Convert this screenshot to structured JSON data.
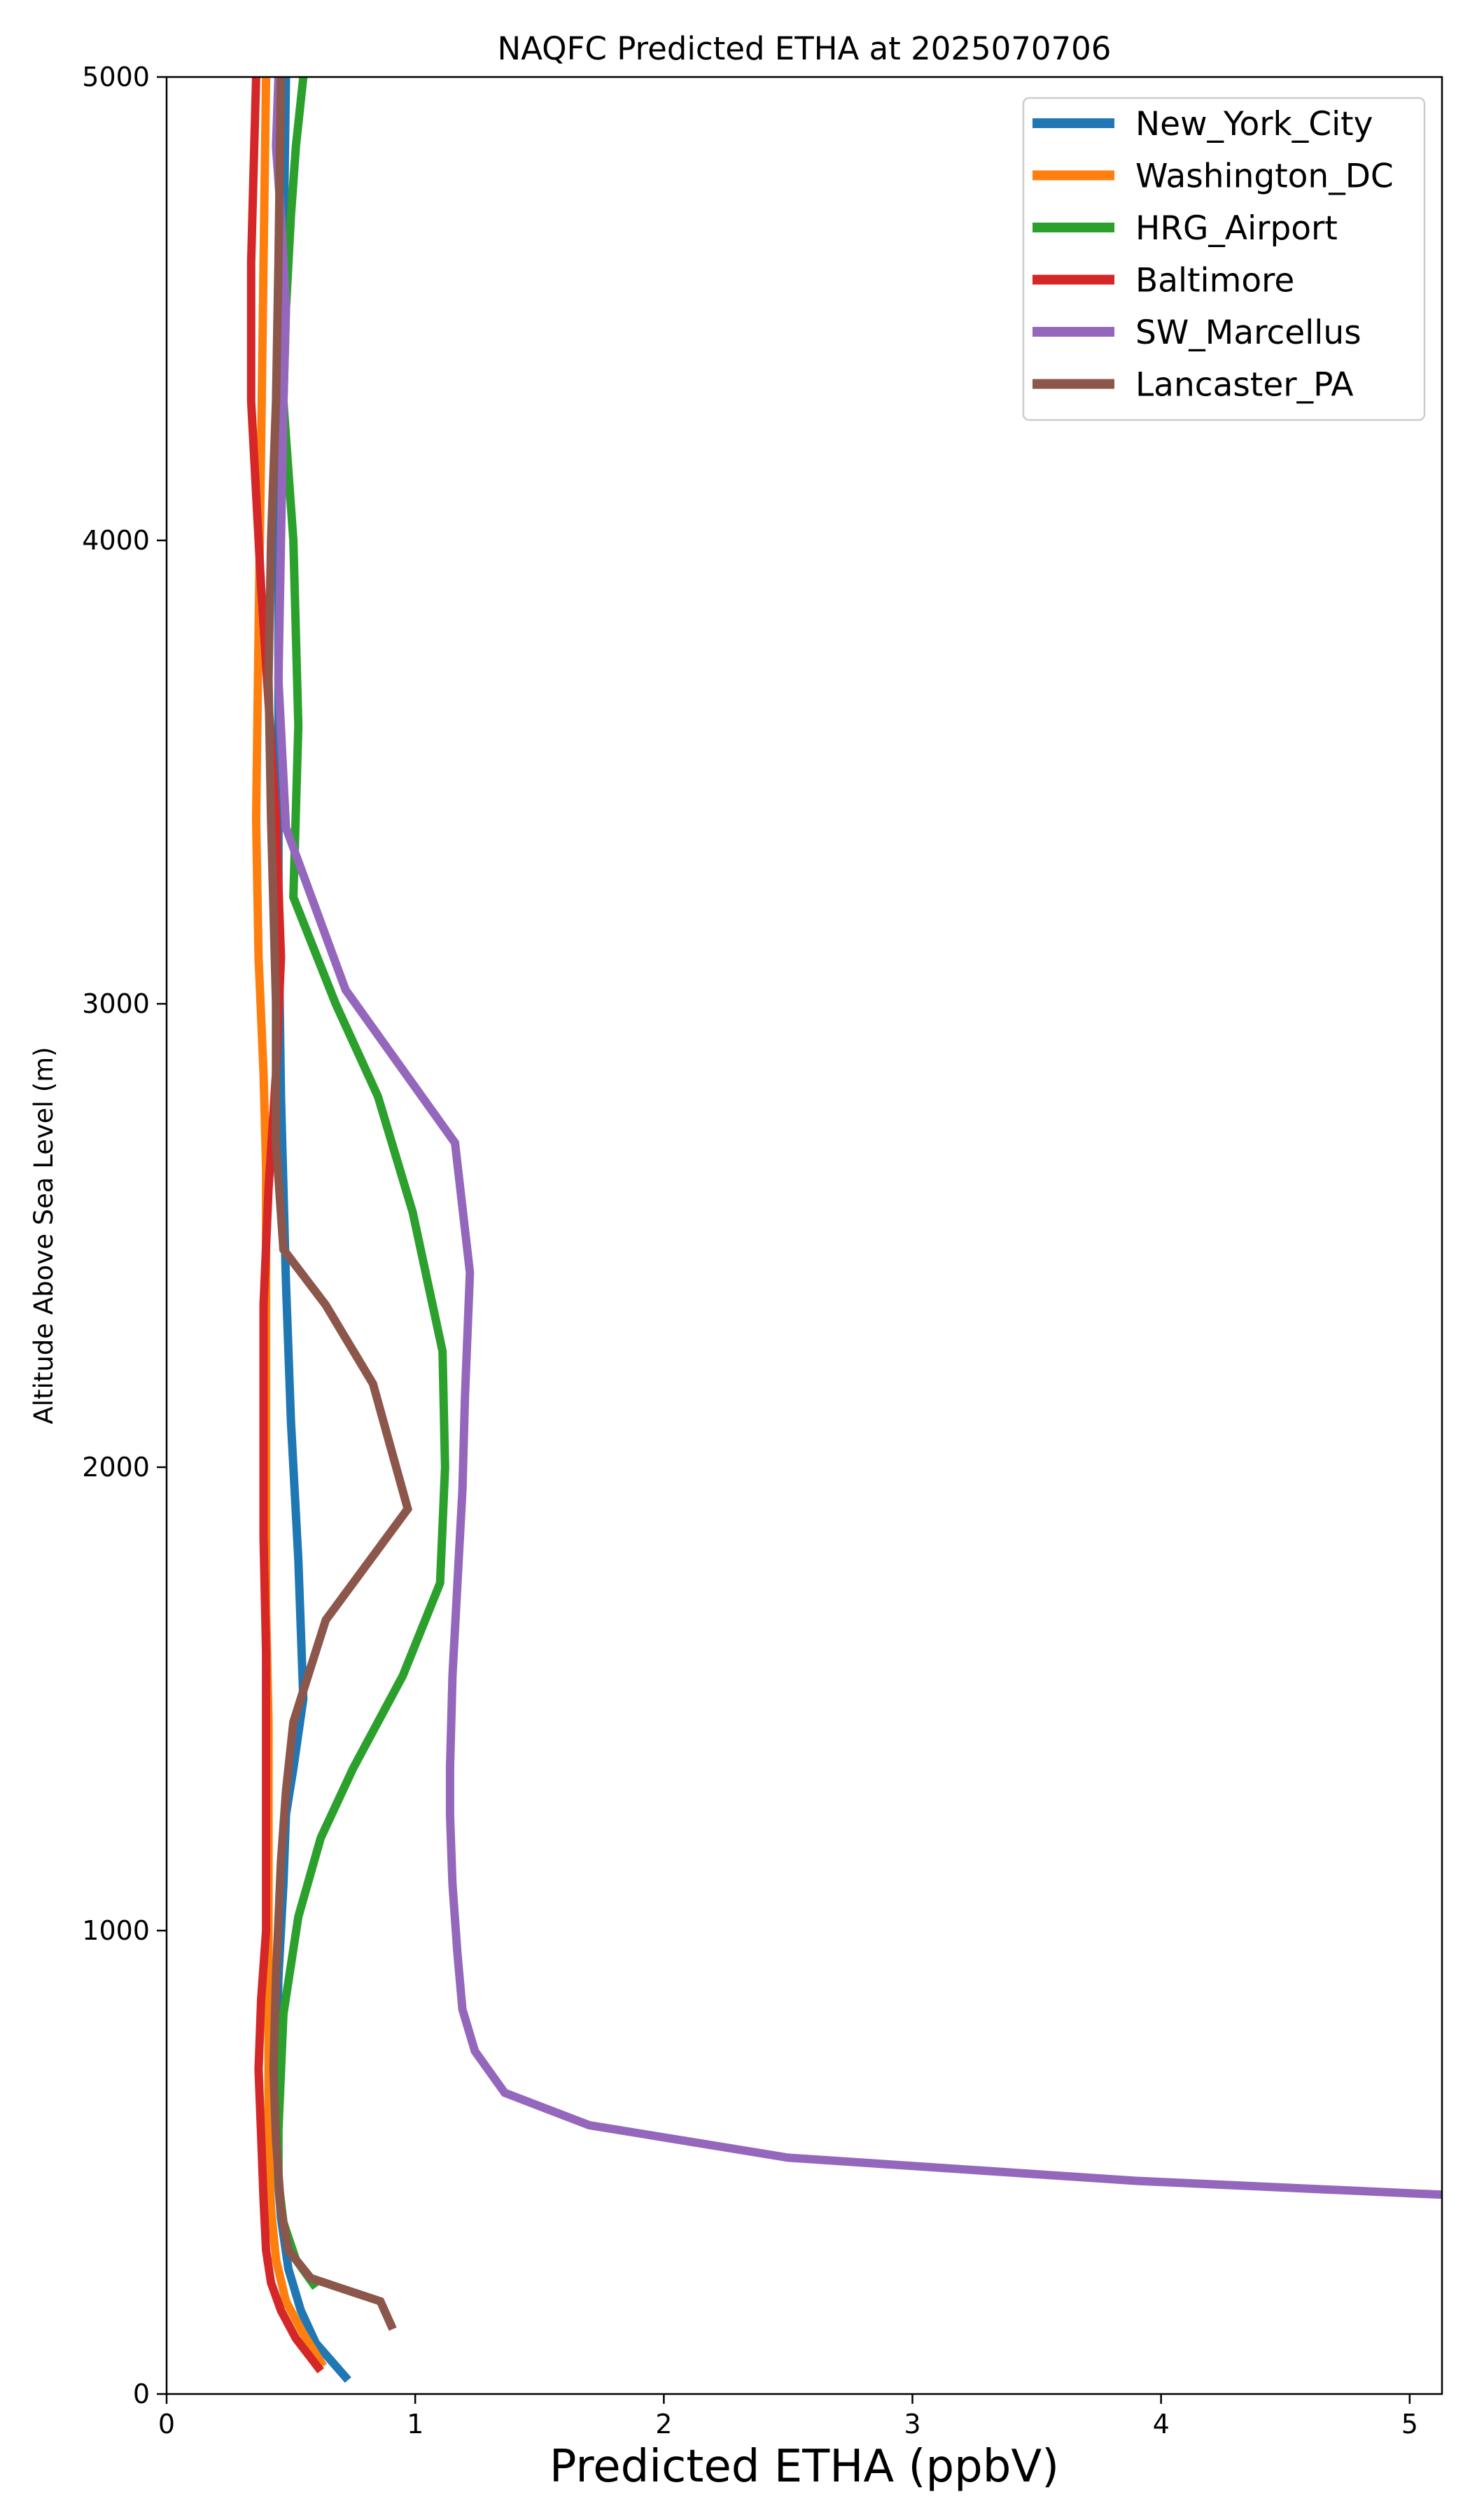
{
  "chart_data": {
    "type": "line",
    "title": "NAQFC Predicted ETHA at 2025070706",
    "xlabel": "Predicted ETHA (ppbV)",
    "ylabel": "Altitude Above Sea Level (m)",
    "xlim": [
      0,
      5.13
    ],
    "ylim": [
      0,
      5000
    ],
    "xticks": [
      0,
      1,
      2,
      3,
      4,
      5
    ],
    "yticks": [
      0,
      1000,
      2000,
      3000,
      4000,
      5000
    ],
    "grid": false,
    "legend_position": "top-right",
    "series": [
      {
        "name": "New_York_City",
        "color": "#1f77b4",
        "x": [
          0.73,
          0.6,
          0.54,
          0.49,
          0.46,
          0.44,
          0.44,
          0.45,
          0.47,
          0.48,
          0.51,
          0.55,
          0.53,
          0.5,
          0.48,
          0.46,
          0.45,
          0.45,
          0.45,
          0.46,
          0.47,
          0.48
        ],
        "y": [
          30,
          110,
          180,
          270,
          380,
          520,
          700,
          900,
          1100,
          1250,
          1350,
          1500,
          1800,
          2100,
          2400,
          2800,
          3200,
          3600,
          4000,
          4300,
          4600,
          5000
        ]
      },
      {
        "name": "Washington_DC",
        "color": "#ff7f0e",
        "x": [
          0.63,
          0.55,
          0.48,
          0.44,
          0.42,
          0.41,
          0.41,
          0.41,
          0.41,
          0.41,
          0.4,
          0.4,
          0.4,
          0.4,
          0.4,
          0.39,
          0.37,
          0.36,
          0.37,
          0.38,
          0.39,
          0.4
        ],
        "y": [
          60,
          130,
          200,
          290,
          400,
          550,
          750,
          950,
          1200,
          1450,
          1700,
          1950,
          2200,
          2450,
          2650,
          2850,
          3100,
          3400,
          3800,
          4200,
          4600,
          5000
        ]
      },
      {
        "name": "HRG_Airport",
        "color": "#2ca02c",
        "x": [
          0.6,
          0.52,
          0.47,
          0.45,
          0.45,
          0.47,
          0.53,
          0.62,
          0.75,
          0.95,
          1.1,
          1.12,
          1.11,
          0.99,
          0.85,
          0.68,
          0.51,
          0.53,
          0.51,
          0.47,
          0.48,
          0.5,
          0.52,
          0.55
        ],
        "y": [
          230,
          290,
          370,
          460,
          570,
          820,
          1030,
          1200,
          1350,
          1550,
          1750,
          2000,
          2250,
          2550,
          2800,
          3000,
          3230,
          3600,
          4000,
          4300,
          4500,
          4700,
          4850,
          5000
        ]
      },
      {
        "name": "Baltimore",
        "color": "#d62728",
        "x": [
          0.62,
          0.52,
          0.46,
          0.42,
          0.4,
          0.39,
          0.38,
          0.37,
          0.38,
          0.4,
          0.4,
          0.4,
          0.39,
          0.39,
          0.39,
          0.41,
          0.44,
          0.46,
          0.44,
          0.38,
          0.34,
          0.34,
          0.35,
          0.36
        ],
        "y": [
          50,
          120,
          180,
          240,
          310,
          420,
          560,
          700,
          850,
          1000,
          1300,
          1600,
          1850,
          2100,
          2350,
          2600,
          2850,
          3100,
          3400,
          3900,
          4300,
          4600,
          4800,
          5000
        ]
      },
      {
        "name": "SW_Marcellus",
        "color": "#9467bd",
        "x": [
          5.13,
          3.9,
          2.5,
          1.7,
          1.36,
          1.24,
          1.19,
          1.17,
          1.15,
          1.14,
          1.14,
          1.15,
          1.17,
          1.19,
          1.2,
          1.22,
          1.16,
          0.72,
          0.48,
          0.45,
          0.46,
          0.47,
          0.48,
          0.46,
          0.44,
          0.45
        ],
        "y": [
          430,
          460,
          510,
          580,
          650,
          740,
          830,
          950,
          1100,
          1250,
          1350,
          1550,
          1750,
          1950,
          2150,
          2420,
          2700,
          3030,
          3380,
          3700,
          4000,
          4300,
          4500,
          4700,
          4850,
          5000
        ]
      },
      {
        "name": "Lancaster_PA",
        "color": "#8c564b",
        "x": [
          0.91,
          0.86,
          0.58,
          0.49,
          0.46,
          0.44,
          0.43,
          0.44,
          0.46,
          0.48,
          0.51,
          0.64,
          0.97,
          0.83,
          0.64,
          0.47,
          0.44,
          0.44,
          0.42,
          0.41,
          0.42,
          0.44,
          0.45,
          0.46
        ],
        "y": [
          140,
          200,
          250,
          310,
          400,
          550,
          700,
          900,
          1150,
          1300,
          1450,
          1670,
          1910,
          2180,
          2350,
          2470,
          2700,
          3000,
          3400,
          3700,
          4000,
          4300,
          4600,
          5000
        ]
      }
    ]
  }
}
